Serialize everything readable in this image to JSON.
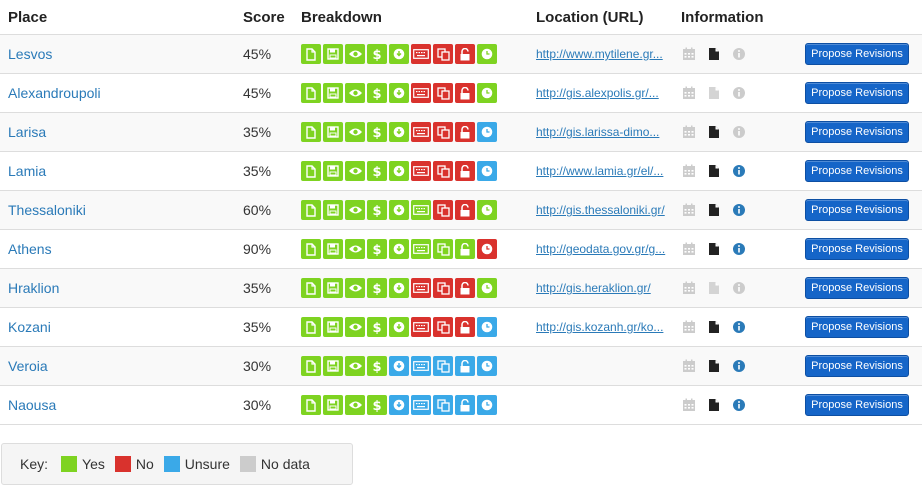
{
  "headers": {
    "place": "Place",
    "score": "Score",
    "breakdown": "Breakdown",
    "location": "Location (URL)",
    "information": "Information"
  },
  "colors": {
    "yes": "#7ed321",
    "no": "#d9322d",
    "unsure": "#3aa9e8",
    "nodata": "#cccccc",
    "link": "#2a7ab8",
    "button": "#1565c8"
  },
  "breakdown_icons": [
    "file-icon",
    "save-icon",
    "eye-icon",
    "dollar-icon",
    "download-icon",
    "keyboard-icon",
    "copy-icon",
    "unlock-icon",
    "clock-icon"
  ],
  "info_icons": [
    "calendar-icon",
    "document-icon",
    "info-icon"
  ],
  "rows": [
    {
      "place": "Lesvos",
      "score": "45%",
      "url": "http://www.mytilene.gr...",
      "breakdown": [
        "yes",
        "yes",
        "yes",
        "yes",
        "yes",
        "no",
        "no",
        "no",
        "yes"
      ],
      "info": [
        "inactive",
        "active",
        "inactive"
      ],
      "button": "Propose Revisions"
    },
    {
      "place": "Alexandroupoli",
      "score": "45%",
      "url": "http://gis.alexpolis.gr/...",
      "breakdown": [
        "yes",
        "yes",
        "yes",
        "yes",
        "yes",
        "no",
        "no",
        "no",
        "yes"
      ],
      "info": [
        "inactive",
        "inactive",
        "inactive"
      ],
      "button": "Propose Revisions"
    },
    {
      "place": "Larisa",
      "score": "35%",
      "url": "http://gis.larissa-dimo...",
      "breakdown": [
        "yes",
        "yes",
        "yes",
        "yes",
        "yes",
        "no",
        "no",
        "no",
        "unsure"
      ],
      "info": [
        "inactive",
        "active",
        "inactive"
      ],
      "button": "Propose Revisions"
    },
    {
      "place": "Lamia",
      "score": "35%",
      "url": "http://www.lamia.gr/el/...",
      "breakdown": [
        "yes",
        "yes",
        "yes",
        "yes",
        "yes",
        "no",
        "no",
        "no",
        "unsure"
      ],
      "info": [
        "inactive",
        "active",
        "active"
      ],
      "button": "Propose Revisions"
    },
    {
      "place": "Thessaloniki",
      "score": "60%",
      "url": "http://gis.thessaloniki.gr/",
      "breakdown": [
        "yes",
        "yes",
        "yes",
        "yes",
        "yes",
        "yes",
        "no",
        "no",
        "yes"
      ],
      "info": [
        "inactive",
        "active",
        "active"
      ],
      "button": "Propose Revisions"
    },
    {
      "place": "Athens",
      "score": "90%",
      "url": "http://geodata.gov.gr/g...",
      "breakdown": [
        "yes",
        "yes",
        "yes",
        "yes",
        "yes",
        "yes",
        "yes",
        "yes",
        "no"
      ],
      "info": [
        "inactive",
        "active",
        "active"
      ],
      "button": "Propose Revisions"
    },
    {
      "place": "Hraklion",
      "score": "35%",
      "url": "http://gis.heraklion.gr/",
      "breakdown": [
        "yes",
        "yes",
        "yes",
        "yes",
        "yes",
        "no",
        "no",
        "no",
        "yes"
      ],
      "info": [
        "inactive",
        "inactive",
        "inactive"
      ],
      "button": "Propose Revisions"
    },
    {
      "place": "Kozani",
      "score": "35%",
      "url": "http://gis.kozanh.gr/ko...",
      "breakdown": [
        "yes",
        "yes",
        "yes",
        "yes",
        "yes",
        "no",
        "no",
        "no",
        "unsure"
      ],
      "info": [
        "inactive",
        "active",
        "active"
      ],
      "button": "Propose Revisions"
    },
    {
      "place": "Veroia",
      "score": "30%",
      "url": "",
      "breakdown": [
        "yes",
        "yes",
        "yes",
        "yes",
        "unsure",
        "unsure",
        "unsure",
        "unsure",
        "unsure"
      ],
      "info": [
        "inactive",
        "active",
        "active"
      ],
      "button": "Propose Revisions"
    },
    {
      "place": "Naousa",
      "score": "30%",
      "url": "",
      "breakdown": [
        "yes",
        "yes",
        "yes",
        "yes",
        "unsure",
        "unsure",
        "unsure",
        "unsure",
        "unsure"
      ],
      "info": [
        "inactive",
        "active",
        "active"
      ],
      "button": "Propose Revisions"
    }
  ],
  "key": {
    "label": "Key:",
    "items": [
      {
        "label": "Yes",
        "status": "yes"
      },
      {
        "label": "No",
        "status": "no"
      },
      {
        "label": "Unsure",
        "status": "unsure"
      },
      {
        "label": "No data",
        "status": "nodata"
      }
    ]
  }
}
